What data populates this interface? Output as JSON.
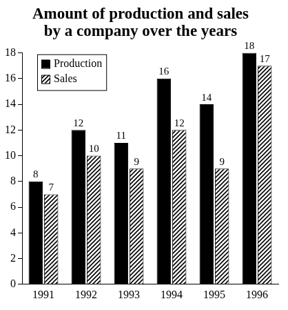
{
  "chart_data": {
    "type": "bar",
    "title": [
      "Amount of production and sales",
      "by a company over the years"
    ],
    "categories": [
      "1991",
      "1992",
      "1993",
      "1994",
      "1995",
      "1996"
    ],
    "series": [
      {
        "name": "Production",
        "color": "#000000",
        "values": [
          8,
          12,
          11,
          16,
          14,
          18
        ]
      },
      {
        "name": "Sales",
        "color": "#000000",
        "marker": "hatch",
        "values": [
          7,
          10,
          9,
          12,
          9,
          17
        ]
      }
    ],
    "ylim": [
      0,
      18
    ],
    "yticks": [
      0,
      2,
      4,
      6,
      8,
      10,
      12,
      14,
      16,
      18
    ],
    "grid": false,
    "legend": "upper left",
    "data_labels": true
  }
}
